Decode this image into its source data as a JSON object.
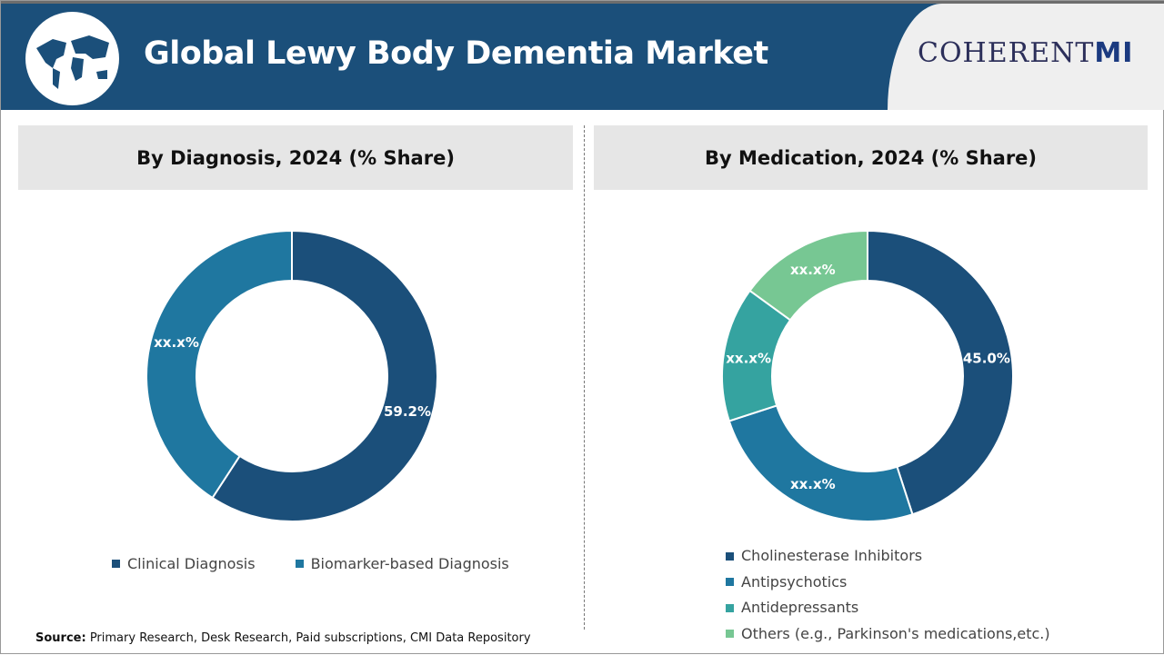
{
  "header": {
    "title": "Global Lewy Body Dementia Market",
    "brand_left": "C",
    "brand_mid": "HERENT",
    "brand_right": "Mi",
    "brand_full": "CoherentMI"
  },
  "source": {
    "label": "Source:",
    "text": " Primary Research, Desk Research, Paid subscriptions, CMI Data Repository"
  },
  "chart_data": [
    {
      "type": "pie",
      "donut": true,
      "title": "By Diagnosis, 2024 (% Share)",
      "categories": [
        "Clinical Diagnosis",
        "Biomarker-based Diagnosis"
      ],
      "values": [
        59.2,
        40.8
      ],
      "labels": [
        "59.2%",
        "xx.x%"
      ],
      "colors": [
        "#1b4f7a",
        "#1f77a0"
      ],
      "legend": "bottom"
    },
    {
      "type": "pie",
      "donut": true,
      "title": "By Medication, 2024 (% Share)",
      "categories": [
        "Cholinesterase Inhibitors",
        "Antipsychotics",
        "Antidepressants",
        "Others (e.g., Parkinson's medications,etc.)"
      ],
      "values": [
        45.0,
        25,
        15,
        15
      ],
      "labels": [
        "45.0%",
        "xx.x%",
        "xx.x%",
        "xx.x%"
      ],
      "colors": [
        "#1b4f7a",
        "#1f77a0",
        "#35a3a0",
        "#77c793"
      ],
      "legend": "bottom"
    }
  ]
}
